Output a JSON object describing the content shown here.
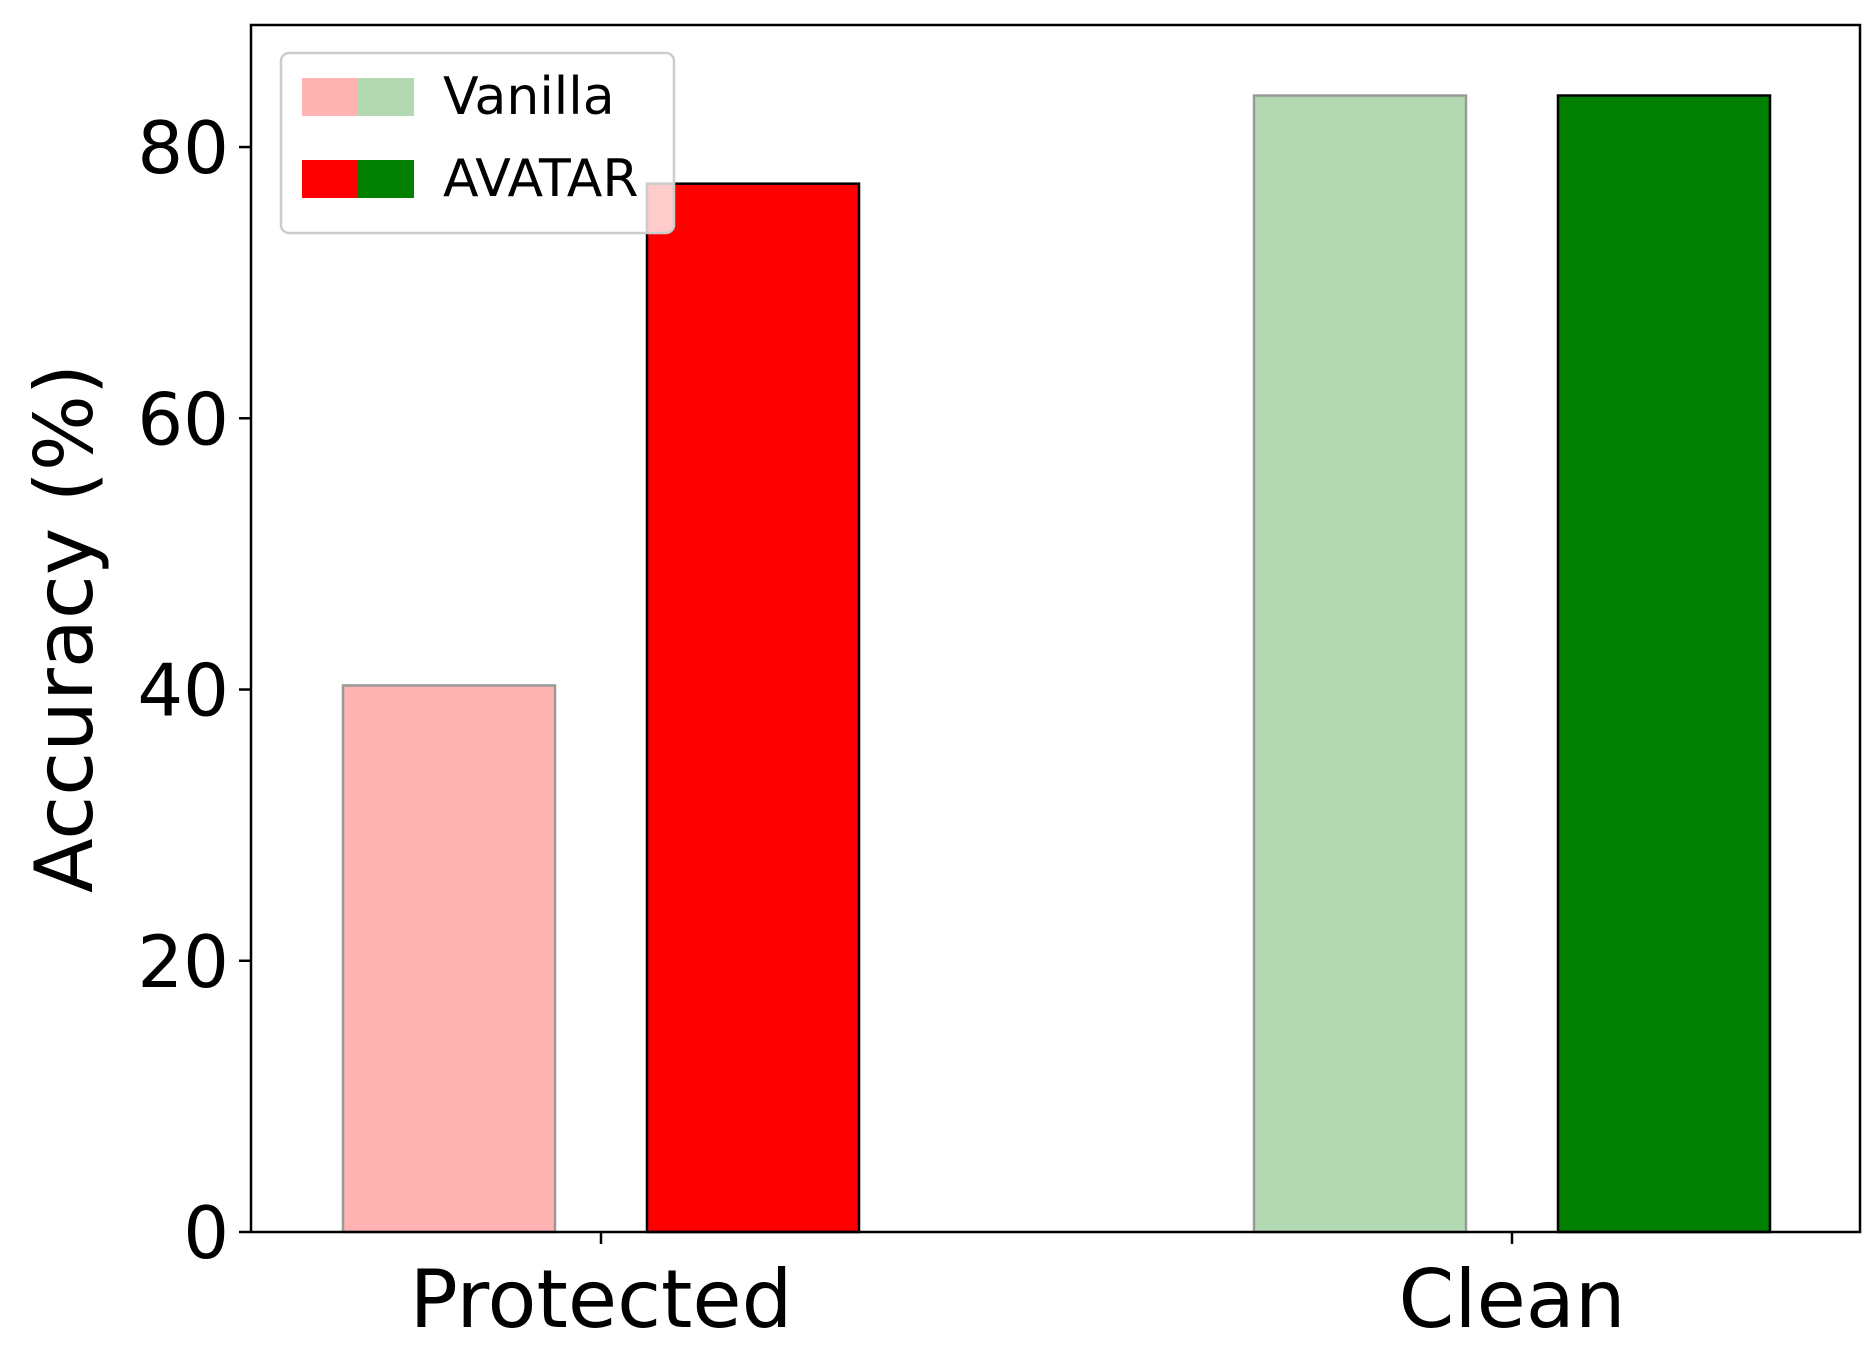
{
  "chart_data": {
    "type": "bar",
    "categories": [
      "Protected",
      "Clean"
    ],
    "series": [
      {
        "name": "Vanilla",
        "values": [
          40.3,
          83.8
        ],
        "colors": [
          "#ffb3b3",
          "#b3d9b3"
        ],
        "edge_color": "#999999"
      },
      {
        "name": "AVATAR",
        "values": [
          77.3,
          83.8
        ],
        "colors": [
          "#ff0000",
          "#007f00"
        ],
        "edge_color": "#000000"
      }
    ],
    "xlabel": "",
    "ylabel": "Accuracy (%)",
    "ylim": [
      0,
      89
    ],
    "yticks": [
      "0",
      "20",
      "40",
      "60",
      "80"
    ],
    "grid": false,
    "legend_position": "top-left"
  }
}
